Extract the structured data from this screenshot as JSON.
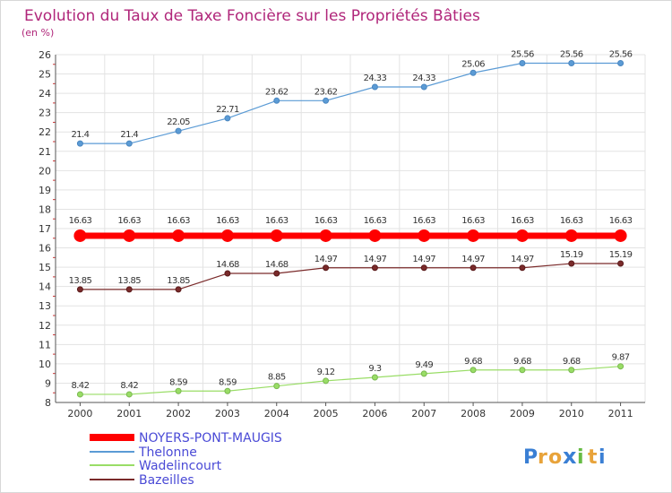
{
  "chart_data": {
    "type": "line",
    "title": "Evolution du Taux de Taxe Foncière sur les Propriétés Bâties",
    "ylabel": "(en %)",
    "categories": [
      "2000",
      "2001",
      "2002",
      "2003",
      "2004",
      "2005",
      "2006",
      "2007",
      "2008",
      "2009",
      "2010",
      "2011"
    ],
    "ylim": [
      8,
      26
    ],
    "yticks": [
      "8",
      "9",
      "10",
      "11",
      "12",
      "13",
      "14",
      "15",
      "16",
      "17",
      "18",
      "19",
      "20",
      "21",
      "22",
      "23",
      "24",
      "25",
      "26"
    ],
    "grid": true,
    "legend_position": "bottom-left",
    "series": [
      {
        "name": "NOYERS-PONT-MAUGIS",
        "color": "#ff0000",
        "values": [
          16.63,
          16.63,
          16.63,
          16.63,
          16.63,
          16.63,
          16.63,
          16.63,
          16.63,
          16.63,
          16.63,
          16.63
        ],
        "labels": [
          "16.63",
          "16.63",
          "16.63",
          "16.63",
          "16.63",
          "16.63",
          "16.63",
          "16.63",
          "16.63",
          "16.63",
          "16.63",
          "16.63"
        ]
      },
      {
        "name": "Thelonne",
        "color": "#5b9bd5",
        "values": [
          21.4,
          21.4,
          22.05,
          22.71,
          23.62,
          23.62,
          24.33,
          24.33,
          25.06,
          25.56,
          25.56,
          25.56
        ],
        "labels": [
          "21.4",
          "21.4",
          "22.05",
          "22.71",
          "23.62",
          "23.62",
          "24.33",
          "24.33",
          "25.06",
          "25.56",
          "25.56",
          "25.56"
        ]
      },
      {
        "name": "Wadelincourt",
        "color": "#99dd66",
        "values": [
          8.42,
          8.42,
          8.59,
          8.59,
          8.85,
          9.12,
          9.3,
          9.49,
          9.68,
          9.68,
          9.68,
          9.87
        ],
        "labels": [
          "8.42",
          "8.42",
          "8.59",
          "8.59",
          "8.85",
          "9.12",
          "9.3",
          "9.49",
          "9.68",
          "9.68",
          "9.68",
          "9.87"
        ]
      },
      {
        "name": "Bazeilles",
        "color": "#7a2a2a",
        "values": [
          13.85,
          13.85,
          13.85,
          14.68,
          14.68,
          14.97,
          14.97,
          14.97,
          14.97,
          14.97,
          15.19,
          15.19
        ],
        "labels": [
          "13.85",
          "13.85",
          "13.85",
          "14.68",
          "14.68",
          "14.97",
          "14.97",
          "14.97",
          "14.97",
          "14.97",
          "15.19",
          "15.19"
        ]
      }
    ]
  },
  "brand": {
    "letters": [
      "P",
      "r",
      "o",
      "x",
      "i",
      "t",
      "i"
    ],
    "colors": [
      "#3a7fd4",
      "#e8a33a",
      "#e8a33a",
      "#3a7fd4",
      "#66bb44",
      "#e8a33a",
      "#3a7fd4"
    ]
  }
}
